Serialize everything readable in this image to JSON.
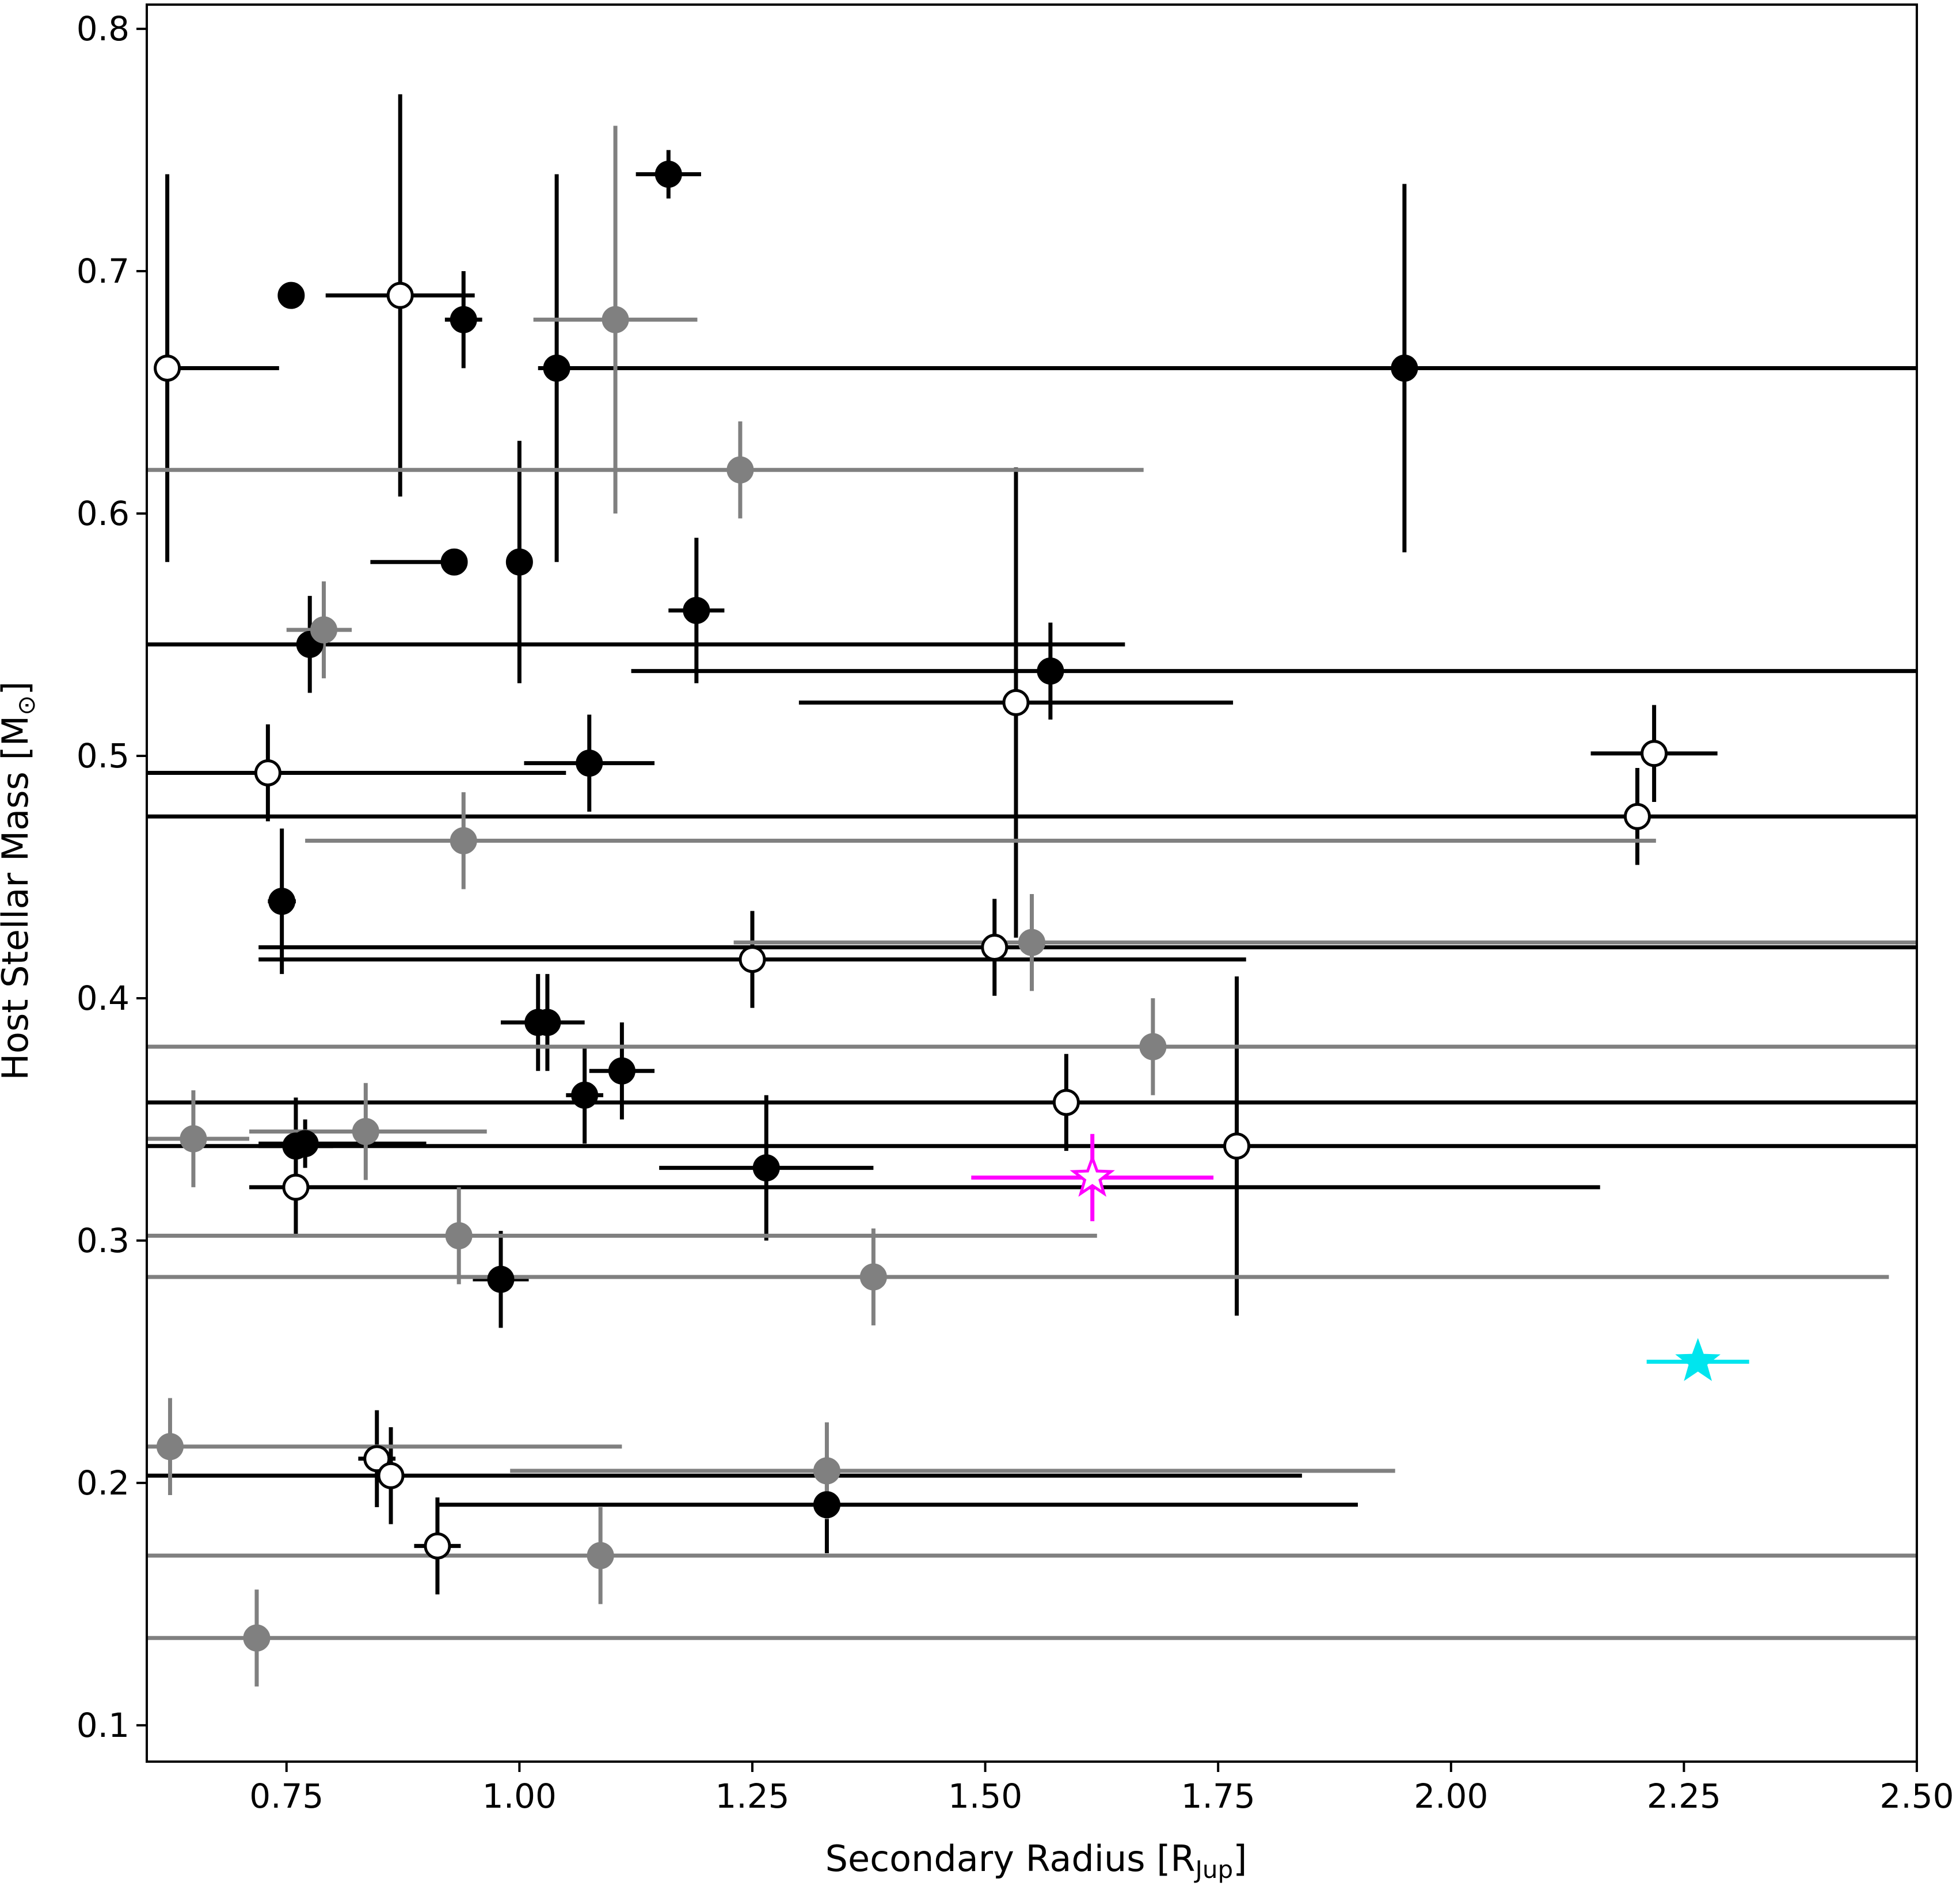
{
  "chart_data": {
    "type": "scatter",
    "title": "",
    "xlabel_main": "Secondary Radius [R",
    "xlabel_sub": "Jup",
    "xlabel_end": "]",
    "ylabel_main": "Host Stellar Mass [M",
    "ylabel_sub": "⊙",
    "ylabel_end": "]",
    "xlim": [
      0.6,
      2.5
    ],
    "ylim": [
      0.085,
      0.81
    ],
    "xticks": [
      0.75,
      1.0,
      1.25,
      1.5,
      1.75,
      2.0,
      2.25,
      2.5
    ],
    "xtick_labels": [
      "0.75",
      "1.00",
      "1.25",
      "1.50",
      "1.75",
      "2.00",
      "2.25",
      "2.50"
    ],
    "yticks": [
      0.1,
      0.2,
      0.3,
      0.4,
      0.5,
      0.6,
      0.7,
      0.8
    ],
    "ytick_labels": [
      "0.1",
      "0.2",
      "0.3",
      "0.4",
      "0.5",
      "0.6",
      "0.7",
      "0.8"
    ],
    "grid": false,
    "colors": {
      "black": "#000000",
      "gray": "#808080",
      "open_fill": "#ffffff",
      "magenta": "#ff00ff",
      "cyan": "#00e5ee"
    },
    "series": [
      {
        "marker": "filled-black",
        "points": [
          {
            "x": 0.755,
            "y": 0.69
          },
          {
            "x": 0.94,
            "y": 0.68,
            "xerr": [
              0.02,
              0.02
            ],
            "yerr": [
              0.02,
              0.02
            ]
          },
          {
            "x": 1.16,
            "y": 0.74,
            "xerr": [
              0.035,
              0.035
            ],
            "yerr": [
              0.01,
              0.01
            ]
          },
          {
            "x": 1.04,
            "y": 0.66,
            "xerr": [
              0.02,
              1.46
            ],
            "yerr": [
              0.08,
              0.08
            ]
          },
          {
            "x": 1.95,
            "y": 0.66,
            "yerr": [
              0.076,
              0.076
            ]
          },
          {
            "x": 0.93,
            "y": 0.58,
            "xerr": [
              0.09,
              0
            ]
          },
          {
            "x": 1.0,
            "y": 0.58,
            "yerr": [
              0.05,
              0.05
            ]
          },
          {
            "x": 1.19,
            "y": 0.56,
            "xerr": [
              0.03,
              0.03
            ],
            "yerr": [
              0.03,
              0.03
            ]
          },
          {
            "x": 0.775,
            "y": 0.546,
            "xerr": [
              0.175,
              0.875
            ],
            "yerr": [
              0.02,
              0.02
            ]
          },
          {
            "x": 1.57,
            "y": 0.535,
            "xerr": [
              0.45,
              0.93
            ],
            "yerr": [
              0.02,
              0.02
            ]
          },
          {
            "x": 1.075,
            "y": 0.497,
            "xerr": [
              0.07,
              0.07
            ],
            "yerr": [
              0.02,
              0.02
            ]
          },
          {
            "x": 0.745,
            "y": 0.44,
            "xerr": [
              0.015,
              0.015
            ],
            "yerr": [
              0.03,
              0.03
            ]
          },
          {
            "x": 1.02,
            "y": 0.39,
            "xerr": [
              0.04,
              0
            ],
            "yerr": [
              0.02,
              0.02
            ]
          },
          {
            "x": 1.03,
            "y": 0.39,
            "xerr": [
              0,
              0.04
            ],
            "yerr": [
              0.02,
              0.02
            ]
          },
          {
            "x": 1.07,
            "y": 0.36,
            "xerr": [
              0.02,
              0.02
            ],
            "yerr": [
              0.02,
              0.02
            ]
          },
          {
            "x": 1.11,
            "y": 0.37,
            "xerr": [
              0.035,
              0.035
            ],
            "yerr": [
              0.02,
              0.02
            ]
          },
          {
            "x": 0.76,
            "y": 0.339,
            "xerr": [
              0.04,
              0.04
            ],
            "yerr": [
              0.02,
              0.02
            ]
          },
          {
            "x": 0.77,
            "y": 0.34,
            "xerr": [
              0.05,
              0.13
            ],
            "yerr": [
              0.01,
              0.01
            ]
          },
          {
            "x": 1.265,
            "y": 0.33,
            "xerr": [
              0.115,
              0.115
            ],
            "yerr": [
              0.03,
              0.03
            ]
          },
          {
            "x": 0.98,
            "y": 0.284,
            "xerr": [
              0.03,
              0.03
            ],
            "yerr": [
              0.02,
              0.02
            ]
          },
          {
            "x": 1.33,
            "y": 0.191,
            "xerr": [
              0.42,
              0.57
            ],
            "yerr": [
              0.02,
              0.02
            ]
          }
        ]
      },
      {
        "marker": "open-black",
        "points": [
          {
            "x": 0.622,
            "y": 0.66,
            "xerr": [
              0,
              0.12
            ],
            "yerr": [
              0.08,
              0.08
            ]
          },
          {
            "x": 0.872,
            "y": 0.69,
            "xerr": [
              0.08,
              0.08
            ],
            "yerr": [
              0.083,
              0.083
            ]
          },
          {
            "x": 0.73,
            "y": 0.493,
            "xerr": [
              0.13,
              0.32
            ],
            "yerr": [
              0.02,
              0.02
            ]
          },
          {
            "x": 1.533,
            "y": 0.522,
            "xerr": [
              0.233,
              0.233
            ],
            "yerr": [
              0.097,
              0.097
            ]
          },
          {
            "x": 2.218,
            "y": 0.501,
            "xerr": [
              0.068,
              0.068
            ],
            "yerr": [
              0.02,
              0.02
            ]
          },
          {
            "x": 2.2,
            "y": 0.475,
            "xerr": [
              1.6,
              0.3
            ],
            "yerr": [
              0.02,
              0.02
            ]
          },
          {
            "x": 1.25,
            "y": 0.416,
            "xerr": [
              0.53,
              0.53
            ],
            "yerr": [
              0.02,
              0.02
            ]
          },
          {
            "x": 1.51,
            "y": 0.421,
            "xerr": [
              0.79,
              1.0
            ],
            "yerr": [
              0.02,
              0.02
            ]
          },
          {
            "x": 1.587,
            "y": 0.357,
            "xerr": [
              1.0,
              0.92
            ],
            "yerr": [
              0.02,
              0.02
            ]
          },
          {
            "x": 1.77,
            "y": 0.339,
            "xerr": [
              1.17,
              0.73
            ],
            "yerr": [
              0.07,
              0.07
            ]
          },
          {
            "x": 0.76,
            "y": 0.322,
            "xerr": [
              0.05,
              1.4
            ],
            "yerr": [
              0.02,
              0.02
            ]
          },
          {
            "x": 0.847,
            "y": 0.21,
            "xerr": [
              0.02,
              0.02
            ],
            "yerr": [
              0.02,
              0.02
            ]
          },
          {
            "x": 0.862,
            "y": 0.203,
            "xerr": [
              0.262,
              0.978
            ],
            "yerr": [
              0.02,
              0.02
            ]
          },
          {
            "x": 0.912,
            "y": 0.174,
            "xerr": [
              0.025,
              0.025
            ],
            "yerr": [
              0.02,
              0.02
            ]
          }
        ]
      },
      {
        "marker": "filled-gray",
        "points": [
          {
            "x": 1.103,
            "y": 0.68,
            "xerr": [
              0.088,
              0.088
            ],
            "yerr": [
              0.08,
              0.08
            ]
          },
          {
            "x": 1.237,
            "y": 0.618,
            "xerr": [
              0.637,
              0.433
            ],
            "yerr": [
              0.02,
              0.02
            ]
          },
          {
            "x": 0.79,
            "y": 0.552,
            "xerr": [
              0.04,
              0.03
            ],
            "yerr": [
              0.02,
              0.02
            ]
          },
          {
            "x": 0.94,
            "y": 0.465,
            "xerr": [
              0.17,
              1.28
            ],
            "yerr": [
              0.02,
              0.02
            ]
          },
          {
            "x": 1.55,
            "y": 0.423,
            "xerr": [
              0.32,
              0.95
            ],
            "yerr": [
              0.02,
              0.02
            ]
          },
          {
            "x": 1.68,
            "y": 0.38,
            "xerr": [
              1.08,
              0.82
            ],
            "yerr": [
              0.02,
              0.02
            ]
          },
          {
            "x": 0.65,
            "y": 0.342,
            "xerr": [
              0.05,
              0.06
            ],
            "yerr": [
              0.02,
              0.02
            ]
          },
          {
            "x": 0.835,
            "y": 0.345,
            "xerr": [
              0.125,
              0.13
            ],
            "yerr": [
              0.02,
              0.02
            ]
          },
          {
            "x": 0.935,
            "y": 0.302,
            "xerr": [
              0.335,
              0.685
            ],
            "yerr": [
              0.02,
              0.02
            ]
          },
          {
            "x": 1.38,
            "y": 0.285,
            "xerr": [
              0.78,
              1.09
            ],
            "yerr": [
              0.02,
              0.02
            ]
          },
          {
            "x": 0.625,
            "y": 0.215,
            "xerr": [
              0.025,
              0.485
            ],
            "yerr": [
              0.02,
              0.02
            ]
          },
          {
            "x": 1.33,
            "y": 0.205,
            "xerr": [
              0.34,
              0.61
            ],
            "yerr": [
              0.02,
              0.02
            ]
          },
          {
            "x": 1.087,
            "y": 0.17,
            "xerr": [
              0.487,
              1.413
            ],
            "yerr": [
              0.02,
              0.02
            ]
          },
          {
            "x": 0.718,
            "y": 0.136,
            "xerr": [
              0.118,
              1.782
            ],
            "yerr": [
              0.02,
              0.02
            ]
          }
        ]
      },
      {
        "marker": "open-star-magenta",
        "points": [
          {
            "x": 1.615,
            "y": 0.326,
            "xerr": [
              0.13,
              0.13
            ],
            "yerr": [
              0.018,
              0.018
            ]
          }
        ]
      },
      {
        "marker": "filled-star-cyan",
        "points": [
          {
            "x": 2.265,
            "y": 0.25,
            "xerr": [
              0.055,
              0.055
            ]
          }
        ]
      }
    ]
  }
}
